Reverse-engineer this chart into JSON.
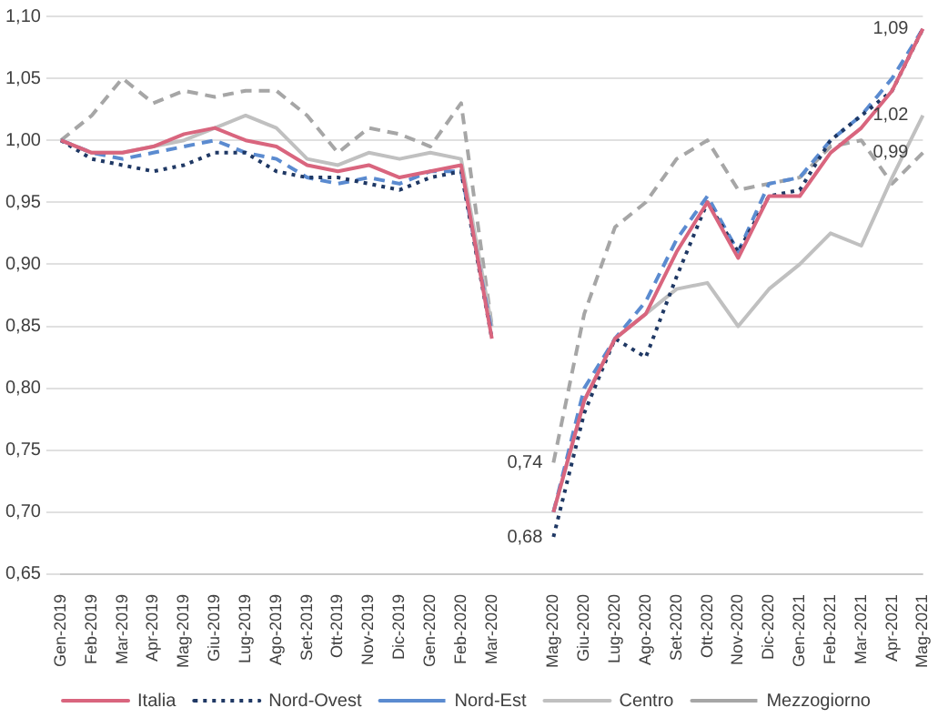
{
  "chart_data": {
    "type": "line",
    "categories": [
      "Gen-2019",
      "Feb-2019",
      "Mar-2019",
      "Apr-2019",
      "Mag-2019",
      "Giu-2019",
      "Lug-2019",
      "Ago-2019",
      "Set-2019",
      "Ott-2019",
      "Nov-2019",
      "Dic-2019",
      "Gen-2020",
      "Feb-2020",
      "Mar-2020",
      null,
      "Mag-2020",
      "Giu-2020",
      "Lug-2020",
      "Ago-2020",
      "Set-2020",
      "Ott-2020",
      "Nov-2020",
      "Dic-2020",
      "Gen-2021",
      "Feb-2021",
      "Mar-2021",
      "Apr-2021",
      "Mag-2021"
    ],
    "series": [
      {
        "name": "Italia",
        "color": "#d9657e",
        "line_style": "solid",
        "values": [
          1.0,
          0.99,
          0.99,
          0.995,
          1.005,
          1.01,
          1.0,
          0.995,
          0.98,
          0.975,
          0.98,
          0.97,
          0.975,
          0.98,
          0.84,
          null,
          0.7,
          0.79,
          0.84,
          0.86,
          0.91,
          0.95,
          0.905,
          0.955,
          0.955,
          0.99,
          1.01,
          1.04,
          1.09
        ]
      },
      {
        "name": "Nord-Ovest",
        "color": "#1f3864",
        "line_style": "dotted",
        "values": [
          1.0,
          0.985,
          0.98,
          0.975,
          0.98,
          0.99,
          0.99,
          0.975,
          0.97,
          0.97,
          0.965,
          0.96,
          0.97,
          0.975,
          0.84,
          null,
          0.68,
          0.78,
          0.84,
          0.825,
          0.89,
          0.95,
          0.91,
          0.955,
          0.96,
          1.0,
          1.02,
          1.04,
          1.09
        ]
      },
      {
        "name": "Nord-Est",
        "color": "#5b8bd0",
        "line_style": "dashed",
        "values": [
          1.0,
          0.99,
          0.985,
          0.99,
          0.995,
          1.0,
          0.99,
          0.985,
          0.97,
          0.965,
          0.97,
          0.965,
          0.975,
          0.975,
          0.845,
          null,
          0.7,
          0.8,
          0.84,
          0.87,
          0.92,
          0.955,
          0.91,
          0.965,
          0.97,
          1.0,
          1.02,
          1.05,
          1.09
        ]
      },
      {
        "name": "Centro",
        "color": "#c0c0c0",
        "line_style": "solid",
        "values": [
          1.0,
          0.99,
          0.99,
          0.995,
          1.0,
          1.01,
          1.02,
          1.01,
          0.985,
          0.98,
          0.99,
          0.985,
          0.99,
          0.985,
          0.85,
          null,
          0.7,
          0.79,
          0.84,
          0.86,
          0.88,
          0.885,
          0.85,
          0.88,
          0.9,
          0.925,
          0.915,
          0.97,
          1.02
        ]
      },
      {
        "name": "Mezzogiorno",
        "color": "#a6a6a6",
        "line_style": "dashed",
        "values": [
          1.0,
          1.02,
          1.05,
          1.03,
          1.04,
          1.035,
          1.04,
          1.04,
          1.02,
          0.99,
          1.01,
          1.005,
          0.995,
          1.03,
          0.85,
          null,
          0.74,
          0.86,
          0.93,
          0.95,
          0.985,
          1.0,
          0.96,
          0.965,
          0.97,
          0.995,
          1.0,
          0.965,
          0.99
        ]
      }
    ],
    "ylim": [
      0.65,
      1.1
    ],
    "yticks": [
      {
        "value": 0.65,
        "label": "0,65"
      },
      {
        "value": 0.7,
        "label": "0,70"
      },
      {
        "value": 0.75,
        "label": "0,75"
      },
      {
        "value": 0.8,
        "label": "0,80"
      },
      {
        "value": 0.85,
        "label": "0,85"
      },
      {
        "value": 0.9,
        "label": "0,90"
      },
      {
        "value": 0.95,
        "label": "0,95"
      },
      {
        "value": 1.0,
        "label": "1,00"
      },
      {
        "value": 1.05,
        "label": "1,05"
      },
      {
        "value": 1.1,
        "label": "1,10"
      }
    ],
    "annotations": [
      {
        "text": "0,74",
        "x": "Mag-2020",
        "y": 0.74
      },
      {
        "text": "0,68",
        "x": "Mag-2020",
        "y": 0.68
      },
      {
        "text": "1,09",
        "x": "Mag-2021",
        "y": 1.09
      },
      {
        "text": "1,02",
        "x": "Mag-2021",
        "y": 1.02
      },
      {
        "text": "0,99",
        "x": "Mag-2021",
        "y": 0.99
      }
    ],
    "grid": "y",
    "legend": "bottom",
    "marker": "none"
  }
}
